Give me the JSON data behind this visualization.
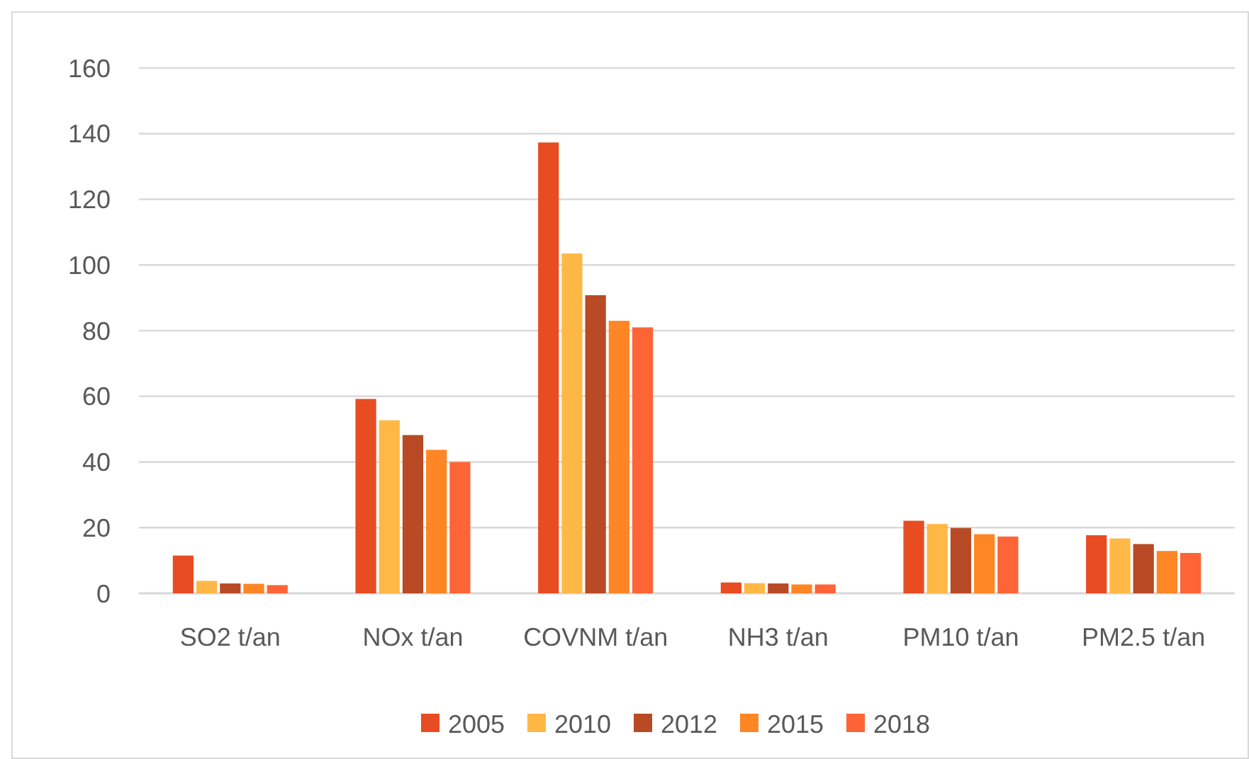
{
  "chart_data": {
    "type": "bar",
    "categories": [
      "SO2 t/an",
      "NOx t/an",
      "COVNM t/an",
      "NH3 t/an",
      "PM10 t/an",
      "PM2.5 t/an"
    ],
    "series": [
      {
        "name": "2005",
        "color": "#e84c22",
        "values": [
          11.5,
          59.2,
          137.3,
          3.3,
          22.1,
          17.7
        ]
      },
      {
        "name": "2010",
        "color": "#ffb845",
        "values": [
          3.8,
          52.7,
          103.5,
          3.1,
          21.1,
          16.7
        ]
      },
      {
        "name": "2012",
        "color": "#b84a25",
        "values": [
          3.0,
          48.2,
          90.8,
          3.0,
          19.9,
          15.0
        ]
      },
      {
        "name": "2015",
        "color": "#fe8625",
        "values": [
          2.9,
          43.7,
          83.0,
          2.7,
          18.0,
          12.9
        ]
      },
      {
        "name": "2018",
        "color": "#ff6436",
        "values": [
          2.5,
          40.0,
          81.0,
          2.7,
          17.3,
          12.3
        ]
      }
    ],
    "ylim": [
      0,
      160
    ],
    "yticks": [
      0,
      20,
      40,
      60,
      80,
      100,
      120,
      140,
      160
    ],
    "grid": "y",
    "legend": "bottom"
  }
}
